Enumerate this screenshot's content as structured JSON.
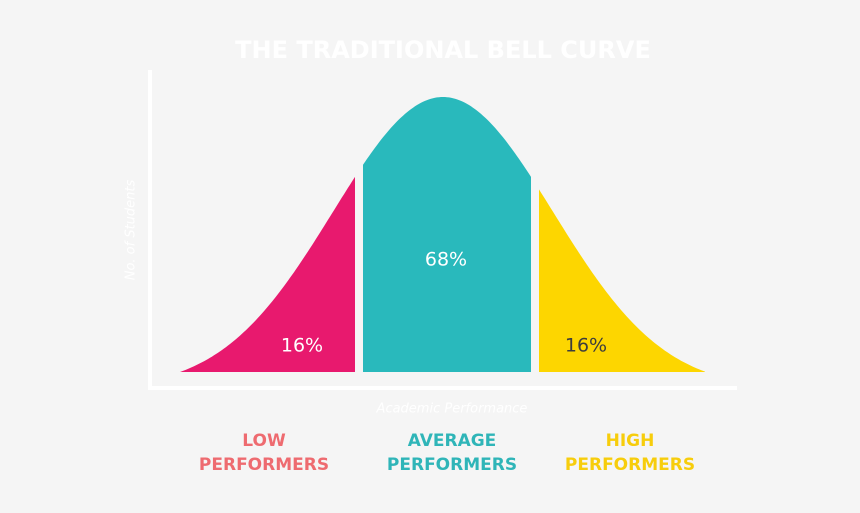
{
  "title": "THE TRADITIONAL BELL CURVE",
  "y_axis_label": "No. of Students",
  "x_axis_label": "Academic Performance",
  "segments": [
    {
      "percent": "16%",
      "label": [
        "LOW",
        "PERFORMERS"
      ]
    },
    {
      "percent": "68%",
      "label": [
        "AVERAGE",
        "PERFORMERS"
      ]
    },
    {
      "percent": "16%",
      "label": [
        "HIGH",
        "PERFORMERS"
      ]
    }
  ]
}
